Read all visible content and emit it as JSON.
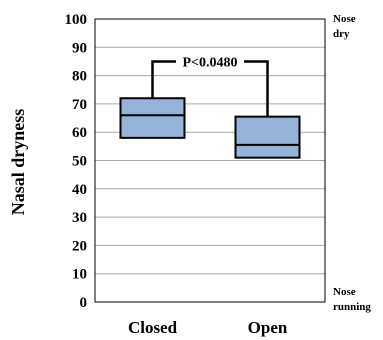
{
  "chart_data": {
    "type": "box",
    "categories": [
      "Closed",
      "Open"
    ],
    "boxes": [
      {
        "name": "Closed",
        "whisker_low": 58,
        "q1": 58,
        "median": 66,
        "q3": 72,
        "whisker_high": 72
      },
      {
        "name": "Open",
        "whisker_low": 51,
        "q1": 51,
        "median": 55.5,
        "q3": 65.5,
        "whisker_high": 65.5
      }
    ],
    "ylabel": "Nasal dryness",
    "ylim": [
      0,
      100
    ],
    "yticks": [
      0,
      10,
      20,
      30,
      40,
      50,
      60,
      70,
      80,
      90,
      100
    ],
    "grid": true,
    "annotation": {
      "text": "P<0.0480",
      "bracket_height": 85
    },
    "right_labels": {
      "top": [
        "Nose",
        "dry"
      ],
      "bottom": [
        "Nose",
        "running"
      ]
    },
    "box_fill": "#95b3d7",
    "box_stroke": "#000000"
  }
}
